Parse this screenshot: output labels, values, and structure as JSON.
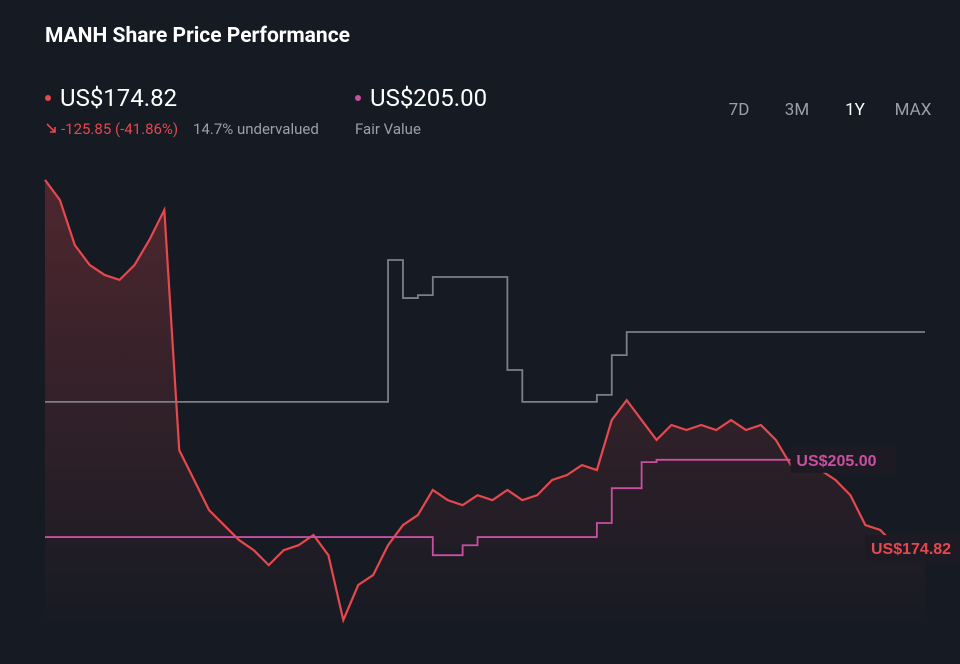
{
  "chart_data": {
    "type": "line",
    "title": "MANH Share Price Performance",
    "price": "US$174.82",
    "change": "-125.85 (-41.86%)",
    "valuation": "14.7% undervalued",
    "fair_value": "US$205.00",
    "fair_value_caption": "Fair Value",
    "ranges": [
      "7D",
      "3M",
      "1Y",
      "MAX"
    ],
    "active_range": "1Y",
    "ylim": [
      143.4,
      307.5
    ],
    "series": [
      {
        "color": "#e5484d",
        "fill": true,
        "values": [
          300.7,
          293.8,
          278.4,
          271.6,
          268.2,
          266.5,
          271.6,
          280.2,
          290.4,
          208.3,
          198.1,
          187.8,
          182.7,
          177.6,
          174.1,
          169.0,
          174.1,
          175.8,
          179.3,
          172.4,
          150.2,
          162.2,
          165.6,
          175.8,
          182.7,
          186.1,
          194.7,
          191.2,
          189.5,
          192.9,
          191.2,
          194.7,
          191.2,
          192.9,
          198.1,
          199.8,
          203.2,
          201.5,
          218.6,
          225.4,
          218.6,
          211.8,
          216.9,
          215.2,
          216.9,
          215.2,
          218.6,
          215.2,
          216.9,
          211.8,
          203.2,
          201.5,
          201.5,
          198.1,
          192.9,
          182.7,
          181.0,
          175.8,
          172.4,
          174.82
        ],
        "end_label": "US$174.82"
      },
      {
        "color": "#7a7f88",
        "step": true,
        "values": [
          224.8,
          224.8,
          224.8,
          224.8,
          224.8,
          224.8,
          224.8,
          224.8,
          224.8,
          224.8,
          224.8,
          224.8,
          224.8,
          224.8,
          224.8,
          224.8,
          224.8,
          224.8,
          224.8,
          224.8,
          224.8,
          224.8,
          224.8,
          273.3,
          260.3,
          261.3,
          267.5,
          267.5,
          267.5,
          267.5,
          267.5,
          235.7,
          224.8,
          224.8,
          224.8,
          224.8,
          224.8,
          227.2,
          240.8,
          248.7,
          248.7,
          248.7,
          248.7,
          248.7,
          248.7,
          248.7,
          248.7,
          248.7,
          248.7,
          248.7,
          248.7,
          248.7,
          248.7,
          248.7,
          248.7,
          248.7,
          248.7,
          248.7,
          248.7,
          248.7
        ]
      },
      {
        "color": "#c94fa0",
        "step": true,
        "values": [
          178.6,
          178.6,
          178.6,
          178.6,
          178.6,
          178.6,
          178.6,
          178.6,
          178.6,
          178.6,
          178.6,
          178.6,
          178.6,
          178.6,
          178.6,
          178.6,
          178.6,
          178.6,
          178.6,
          178.6,
          178.6,
          178.6,
          178.6,
          178.6,
          178.6,
          178.6,
          172.4,
          172.4,
          175.8,
          178.6,
          178.6,
          178.6,
          178.6,
          178.6,
          178.6,
          178.6,
          178.6,
          183.4,
          195.3,
          195.3,
          204.2,
          205.0,
          205.0,
          205.0,
          205.0,
          205.0,
          205.0,
          205.0,
          205.0,
          205.0,
          205.0,
          205.0,
          205.0,
          205.0,
          205.0,
          null,
          null,
          null,
          null,
          null
        ],
        "end_label": "US$205.00"
      }
    ]
  }
}
